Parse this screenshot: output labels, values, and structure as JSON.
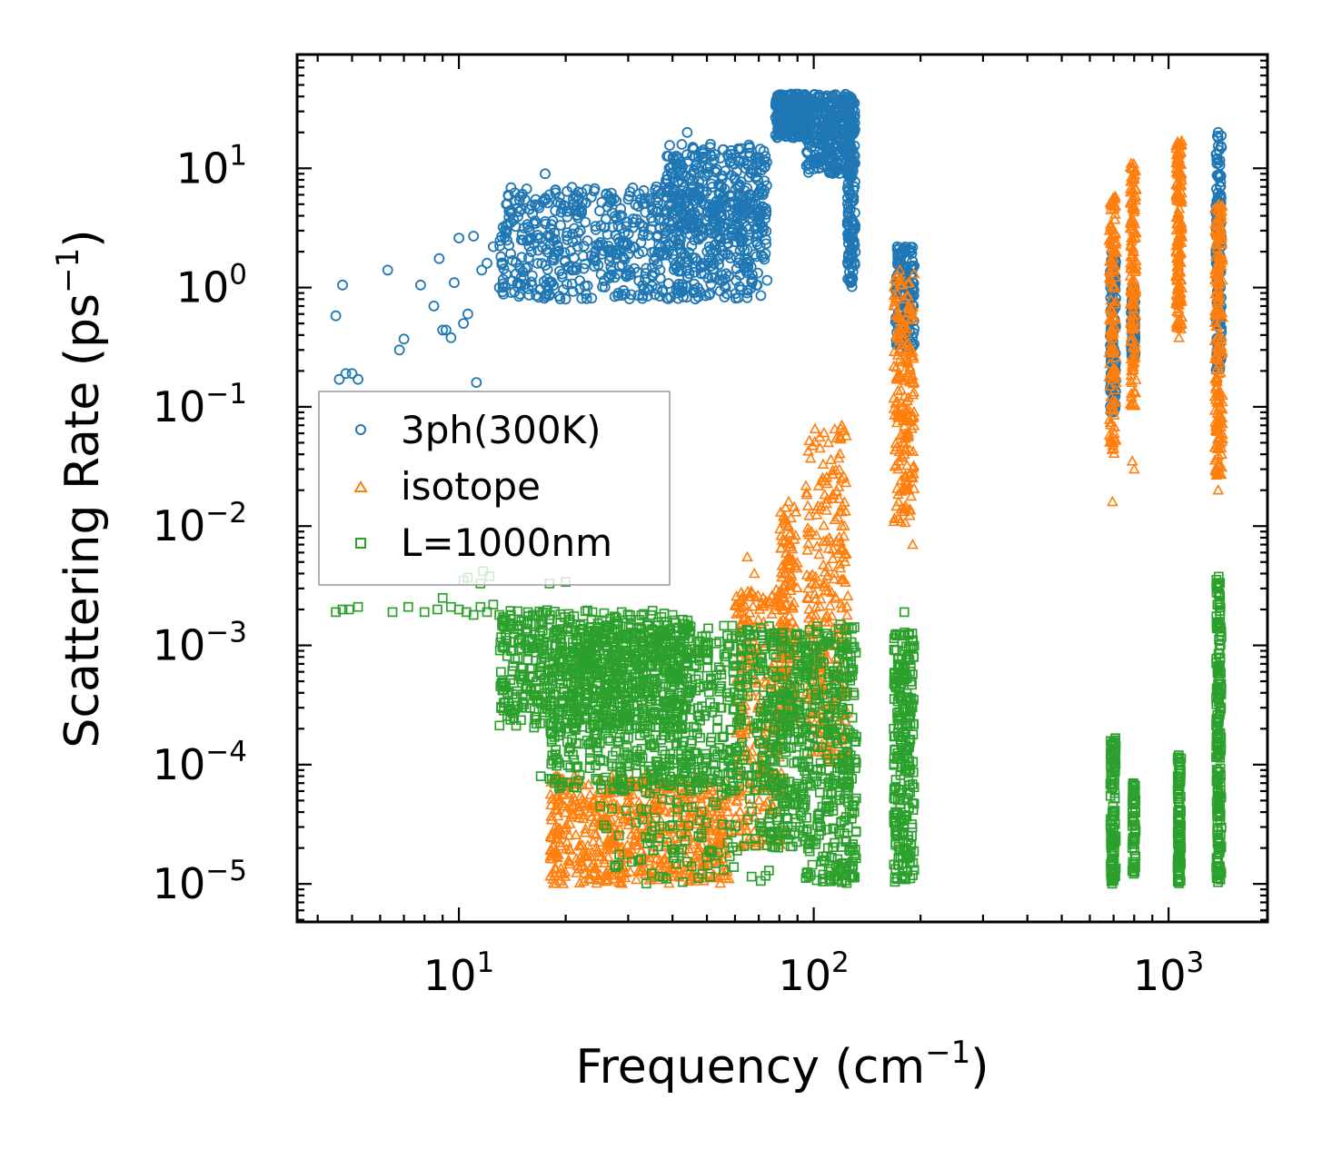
{
  "chart_data": {
    "type": "scatter",
    "title": "",
    "xlabel": "Frequency (cm",
    "xlabel_exp": "−1",
    "xlabel_close": ")",
    "ylabel": "Scattering Rate (ps",
    "ylabel_exp": "−1",
    "ylabel_close": ")",
    "x_scale": "log",
    "y_scale": "log",
    "xlim": [
      3.5,
      1900
    ],
    "ylim": [
      4.8e-06,
      90
    ],
    "x_ticks": [
      {
        "value": 10,
        "base": "10",
        "exp": "1"
      },
      {
        "value": 100,
        "base": "10",
        "exp": "2"
      },
      {
        "value": 1000,
        "base": "10",
        "exp": "3"
      }
    ],
    "y_ticks": [
      {
        "value": 10,
        "base": "10",
        "exp": "1"
      },
      {
        "value": 1,
        "base": "10",
        "exp": "0"
      },
      {
        "value": 0.1,
        "base": "10",
        "exp": "−1"
      },
      {
        "value": 0.01,
        "base": "10",
        "exp": "−2"
      },
      {
        "value": 0.001,
        "base": "10",
        "exp": "−3"
      },
      {
        "value": 0.0001,
        "base": "10",
        "exp": "−4"
      },
      {
        "value": 1e-05,
        "base": "10",
        "exp": "−5"
      }
    ],
    "legend_position": "center-left",
    "series": [
      {
        "name": "3ph(300K)",
        "marker": "circle",
        "color": "#1f77b4",
        "points": [
          [
            4.5,
            0.58
          ],
          [
            4.7,
            1.05
          ],
          [
            4.6,
            0.17
          ],
          [
            4.8,
            0.19
          ],
          [
            5.0,
            0.19
          ],
          [
            5.2,
            0.17
          ],
          [
            6.3,
            1.4
          ],
          [
            6.8,
            0.3
          ],
          [
            7.0,
            0.37
          ],
          [
            7.8,
            1.05
          ],
          [
            8.5,
            0.7
          ],
          [
            8.8,
            1.75
          ],
          [
            9.0,
            0.44
          ],
          [
            9.2,
            0.44
          ],
          [
            9.5,
            0.38
          ],
          [
            9.7,
            1.1
          ],
          [
            10.0,
            2.6
          ],
          [
            10.3,
            0.5
          ],
          [
            10.6,
            0.6
          ],
          [
            11.0,
            2.7
          ],
          [
            11.2,
            0.16
          ],
          [
            11.6,
            1.4
          ],
          [
            12.0,
            1.6
          ],
          [
            12.5,
            2.2
          ],
          [
            13.0,
            1.0
          ],
          [
            14.0,
            3.5
          ],
          [
            15.0,
            4.5
          ],
          [
            16.0,
            2.0
          ],
          [
            17.5,
            9.0
          ],
          [
            18.0,
            6.0
          ],
          [
            19.0,
            2.0
          ],
          [
            20.0,
            0.8
          ],
          [
            21.0,
            5.5
          ],
          [
            22.0,
            3.0
          ],
          [
            24.0,
            1.7
          ],
          [
            26.0,
            6.0
          ],
          [
            28.0,
            1.3
          ],
          [
            30.0,
            5.5
          ],
          [
            33.0,
            2.0
          ],
          [
            36.0,
            7.0
          ],
          [
            40.0,
            9.0
          ],
          [
            44.0,
            20.0
          ],
          [
            50.0,
            10.0
          ],
          [
            55.0,
            4.0
          ],
          [
            60.0,
            8.0
          ],
          [
            65.0,
            2.5
          ],
          [
            72.0,
            6.0
          ],
          [
            80.0,
            26.0
          ],
          [
            85.0,
            40.0
          ],
          [
            90.0,
            22.0
          ],
          [
            100.0,
            35.0
          ],
          [
            110.0,
            25.0
          ],
          [
            118.0,
            10.0
          ],
          [
            122.0,
            40.0
          ],
          [
            127.0,
            1.1
          ],
          [
            172.0,
            2.2
          ],
          [
            180.0,
            1.3
          ],
          [
            188.0,
            0.8
          ],
          [
            690.0,
            0.6
          ],
          [
            700.0,
            0.15
          ],
          [
            795.0,
            0.9
          ],
          [
            800.0,
            0.3
          ],
          [
            1380.0,
            20.0
          ],
          [
            1390.0,
            5.0
          ],
          [
            1400.0,
            1.0
          ]
        ],
        "bands": [
          {
            "x": [
              13.0,
              74.0
            ],
            "y": [
              0.8,
              7.0
            ],
            "count": 700
          },
          {
            "x": [
              38.0,
              74.0
            ],
            "y": [
              2.5,
              16.0
            ],
            "count": 300
          },
          {
            "x": [
              78.0,
              95.0
            ],
            "y": [
              18.0,
              42.0
            ],
            "count": 250
          },
          {
            "x": [
              95.0,
              128.0
            ],
            "y": [
              9.0,
              42.0
            ],
            "count": 300
          },
          {
            "x": [
              124.0,
              131.0
            ],
            "y": [
              1.0,
              40.0
            ],
            "count": 160
          },
          {
            "x": [
              170.0,
              192.0
            ],
            "y": [
              0.3,
              2.2
            ],
            "count": 150
          },
          {
            "x": [
              685.0,
              710.0
            ],
            "y": [
              0.09,
              2.0
            ],
            "count": 120
          },
          {
            "x": [
              785.0,
              805.0
            ],
            "y": [
              0.25,
              1.0
            ],
            "count": 90
          },
          {
            "x": [
              1360.0,
              1410.0
            ],
            "y": [
              0.2,
              20.0
            ],
            "count": 150
          }
        ]
      },
      {
        "name": "isotope",
        "marker": "triangle",
        "color": "#ff7f0e",
        "points": [
          [
            65.0,
            0.0055
          ],
          [
            68.0,
            0.004
          ],
          [
            72.0,
            0.0025
          ],
          [
            85.0,
            0.016
          ],
          [
            110.0,
            0.05
          ],
          [
            120.0,
            0.07
          ],
          [
            120.0,
            0.01
          ],
          [
            170.0,
            0.7
          ],
          [
            175.0,
            0.25
          ],
          [
            180.0,
            0.04
          ],
          [
            185.0,
            0.02
          ],
          [
            190.0,
            0.007
          ],
          [
            695.0,
            0.016
          ],
          [
            700.0,
            0.05
          ],
          [
            790.0,
            0.035
          ],
          [
            800.0,
            0.03
          ],
          [
            1070.0,
            0.38
          ],
          [
            1380.0,
            0.02
          ],
          [
            1390.0,
            3.5
          ]
        ],
        "bands": [
          {
            "x": [
              18.0,
              58.0
            ],
            "y": [
              1e-05,
              8e-05
            ],
            "count": 650
          },
          {
            "x": [
              60.0,
              82.0
            ],
            "y": [
              2e-05,
              0.003
            ],
            "count": 260
          },
          {
            "x": [
              80.0,
              90.0
            ],
            "y": [
              0.0002,
              0.015
            ],
            "count": 160
          },
          {
            "x": [
              95.0,
              125.0
            ],
            "y": [
              0.0001,
              0.07
            ],
            "count": 280
          },
          {
            "x": [
              168.0,
              192.0
            ],
            "y": [
              0.01,
              1.4
            ],
            "count": 200
          },
          {
            "x": [
              680.0,
              712.0
            ],
            "y": [
              0.04,
              6.0
            ],
            "count": 140
          },
          {
            "x": [
              780.0,
              810.0
            ],
            "y": [
              0.1,
              11.0
            ],
            "count": 150
          },
          {
            "x": [
              1050.0,
              1090.0
            ],
            "y": [
              0.45,
              17.0
            ],
            "count": 180
          },
          {
            "x": [
              1350.0,
              1420.0
            ],
            "y": [
              0.025,
              5.0
            ],
            "count": 200
          }
        ]
      },
      {
        "name": "L=1000nm",
        "marker": "square",
        "color": "#2ca02c",
        "points": [
          [
            4.5,
            0.0019
          ],
          [
            4.7,
            0.002
          ],
          [
            4.9,
            0.002
          ],
          [
            5.2,
            0.0021
          ],
          [
            6.5,
            0.0019
          ],
          [
            7.2,
            0.0021
          ],
          [
            8.0,
            0.0019
          ],
          [
            8.7,
            0.002
          ],
          [
            9.0,
            0.0025
          ],
          [
            9.5,
            0.0021
          ],
          [
            10.0,
            0.002
          ],
          [
            10.5,
            0.0019
          ],
          [
            11.0,
            0.0018
          ],
          [
            11.5,
            0.0021
          ],
          [
            12.0,
            0.0019
          ],
          [
            12.5,
            0.0022
          ],
          [
            13.0,
            0.0018
          ],
          [
            14.0,
            0.0018
          ],
          [
            15.0,
            0.0016
          ],
          [
            15.5,
            0.0003
          ],
          [
            15.0,
            0.0003
          ],
          [
            17.0,
            8e-05
          ],
          [
            18.0,
            0.0033
          ],
          [
            20.0,
            0.0034
          ],
          [
            10.3,
            0.0035
          ],
          [
            10.6,
            0.0037
          ],
          [
            11.5,
            0.0033
          ],
          [
            11.7,
            0.0042
          ],
          [
            12.2,
            0.0038
          ],
          [
            33.0,
            0.0009
          ],
          [
            40.0,
            0.0018
          ],
          [
            44.0,
            0.0014
          ],
          [
            105.0,
            0.0006
          ],
          [
            180.0,
            0.0019
          ]
        ],
        "bands": [
          {
            "x": [
              13.0,
              45.0
            ],
            "y": [
              0.0002,
              0.002
            ],
            "count": 650
          },
          {
            "x": [
              18.0,
              75.0
            ],
            "y": [
              6e-05,
              0.0015
            ],
            "count": 800
          },
          {
            "x": [
              25.0,
              75.0
            ],
            "y": [
              1e-05,
              0.0001
            ],
            "count": 130
          },
          {
            "x": [
              75.0,
              95.0
            ],
            "y": [
              2e-05,
              0.0013
            ],
            "count": 240
          },
          {
            "x": [
              95.0,
              132.0
            ],
            "y": [
              1e-05,
              0.0015
            ],
            "count": 360
          },
          {
            "x": [
              168.0,
              192.0
            ],
            "y": [
              1e-05,
              0.0013
            ],
            "count": 250
          },
          {
            "x": [
              685.0,
              710.0
            ],
            "y": [
              1e-05,
              0.00017
            ],
            "count": 120
          },
          {
            "x": [
              790.0,
              808.0
            ],
            "y": [
              1e-05,
              7e-05
            ],
            "count": 60
          },
          {
            "x": [
              1060.0,
              1085.0
            ],
            "y": [
              1e-05,
              0.00012
            ],
            "count": 100
          },
          {
            "x": [
              1360.0,
              1410.0
            ],
            "y": [
              1e-05,
              0.004
            ],
            "count": 200
          }
        ]
      }
    ]
  }
}
